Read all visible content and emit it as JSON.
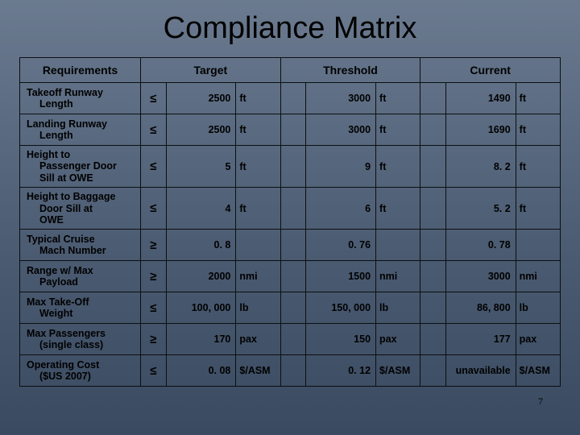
{
  "title": "Compliance Matrix",
  "headers": {
    "c1": "Requirements",
    "c2": "Target",
    "c3": "Threshold",
    "c4": "Current"
  },
  "page_number": "7",
  "rows": [
    {
      "reqA": "Takeoff Runway",
      "reqB": "Length",
      "op": "≤",
      "tv": "2500",
      "tu": "ft",
      "thv": "3000",
      "thu": "ft",
      "cv": "1490",
      "cu": "ft"
    },
    {
      "reqA": "Landing Runway",
      "reqB": "Length",
      "op": "≤",
      "tv": "2500",
      "tu": "ft",
      "thv": "3000",
      "thu": "ft",
      "cv": "1690",
      "cu": "ft"
    },
    {
      "reqA": "Height to",
      "reqB": "Passenger Door",
      "reqC": "Sill at OWE",
      "op": "≤",
      "tv": "5",
      "tu": "ft",
      "thv": "9",
      "thu": "ft",
      "cv": "8. 2",
      "cu": "ft"
    },
    {
      "reqA": "Height to Baggage",
      "reqB": "Door Sill at",
      "reqC": "OWE",
      "op": "≤",
      "tv": "4",
      "tu": "ft",
      "thv": "6",
      "thu": "ft",
      "cv": "5. 2",
      "cu": "ft"
    },
    {
      "reqA": "Typical Cruise",
      "reqB": "Mach Number",
      "op": "≥",
      "tv": "0. 8",
      "tu": "",
      "thv": "0. 76",
      "thu": "",
      "cv": "0. 78",
      "cu": ""
    },
    {
      "reqA": "Range w/ Max",
      "reqB": "Payload",
      "op": "≥",
      "tv": "2000",
      "tu": "nmi",
      "thv": "1500",
      "thu": "nmi",
      "cv": "3000",
      "cu": "nmi"
    },
    {
      "reqA": "Max Take-Off",
      "reqB": "Weight",
      "op": "≤",
      "tv": "100, 000",
      "tu": "lb",
      "thv": "150, 000",
      "thu": "lb",
      "cv": "86, 800",
      "cu": "lb"
    },
    {
      "reqA": "Max Passengers",
      "reqB": "(single class)",
      "op": "≥",
      "tv": "170",
      "tu": "pax",
      "thv": "150",
      "thu": "pax",
      "cv": "177",
      "cu": "pax"
    },
    {
      "reqA": "Operating Cost",
      "reqB": "($US 2007)",
      "op": "≤",
      "tv": "0. 08",
      "tu": "$/ASM",
      "thv": "0. 12",
      "thu": "$/ASM",
      "cv": "unavailable",
      "cu": "$/ASM"
    }
  ]
}
